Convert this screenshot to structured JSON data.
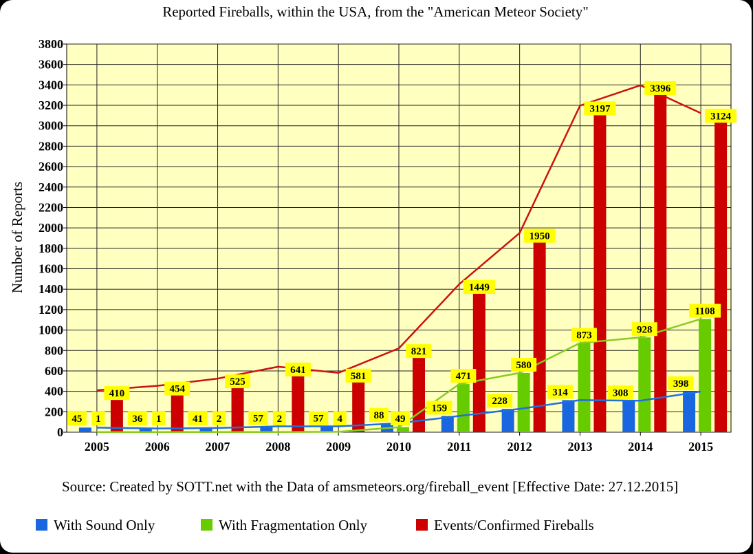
{
  "chart_data": {
    "type": "bar",
    "title": "Reported Fireballs, within the USA, from the \"American Meteor Society\"",
    "ylabel": "Number of Reports",
    "xlabel": "",
    "source": "Source: Created by SOTT.net with the Data of amsmeteors.org/fireball_event [Effective Date: 27.12.2015]",
    "ylim": [
      0,
      3800
    ],
    "ytick_step": 200,
    "grid": true,
    "legend_position": "bottom",
    "plot_background": "#ffffc0",
    "label_background": "#ffff00",
    "categories": [
      "2005",
      "2006",
      "2007",
      "2008",
      "2009",
      "2010",
      "2011",
      "2012",
      "2013",
      "2014",
      "2015"
    ],
    "series": [
      {
        "name": "With Sound Only",
        "color": "#1a66e0",
        "line_color": "#1f6fe0",
        "values": [
          45,
          36,
          41,
          57,
          57,
          88,
          159,
          228,
          314,
          308,
          398
        ]
      },
      {
        "name": "With Fragmentation Only",
        "color": "#66cc00",
        "line_color": "#88cc22",
        "values": [
          1,
          1,
          2,
          2,
          4,
          49,
          471,
          580,
          873,
          928,
          1108
        ]
      },
      {
        "name": "Events/Confirmed Fireballs",
        "color": "#cc0000",
        "line_color": "#cc1111",
        "values": [
          410,
          454,
          525,
          641,
          581,
          821,
          1449,
          1950,
          3197,
          3396,
          3124
        ]
      }
    ]
  }
}
